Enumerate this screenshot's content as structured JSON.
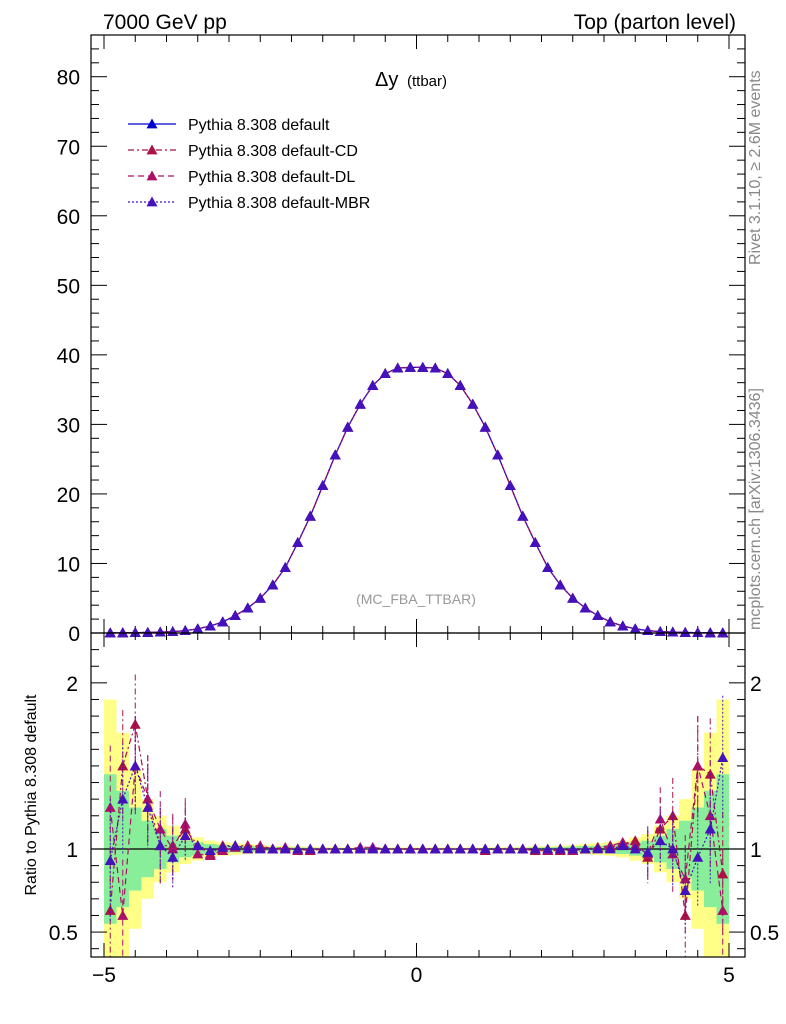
{
  "header": {
    "left": "7000 GeV pp",
    "right": "Top (parton level)"
  },
  "side_text": {
    "rivet": "Rivet 3.1.10, ≥ 2.6M events",
    "mcplots": "mcplots.cern.ch [arXiv:1306.3436]"
  },
  "plot_title": {
    "main": "Δy",
    "sub": "(ttbar)"
  },
  "watermark": "(MC_FBA_TTBAR)",
  "ratio_ylabel": "Ratio to Pythia 8.308 default",
  "colors": {
    "default": "#0000cc",
    "cd": "#aa1144",
    "dl": "#aa1166",
    "mbr": "#4411bb",
    "band_outer": "#ffff88",
    "band_inner": "#88ee99"
  },
  "chart_data": [
    {
      "type": "line",
      "panel": "main",
      "xlim": [
        -5,
        5
      ],
      "ylim": [
        0,
        86
      ],
      "yticks": [
        0,
        10,
        20,
        30,
        40,
        50,
        60,
        70,
        80
      ],
      "x": [
        -4.9,
        -4.7,
        -4.5,
        -4.3,
        -4.1,
        -3.9,
        -3.7,
        -3.5,
        -3.3,
        -3.1,
        -2.9,
        -2.7,
        -2.5,
        -2.3,
        -2.1,
        -1.9,
        -1.7,
        -1.5,
        -1.3,
        -1.1,
        -0.9,
        -0.7,
        -0.5,
        -0.3,
        -0.1,
        0.1,
        0.3,
        0.5,
        0.7,
        0.9,
        1.1,
        1.3,
        1.5,
        1.7,
        1.9,
        2.1,
        2.3,
        2.5,
        2.7,
        2.9,
        3.1,
        3.3,
        3.5,
        3.7,
        3.9,
        4.1,
        4.3,
        4.5,
        4.7,
        4.9
      ],
      "series": [
        {
          "name": "Pythia 8.308 default",
          "style": "solid",
          "marker": "triangle",
          "values": [
            0.02,
            0.03,
            0.05,
            0.08,
            0.13,
            0.2,
            0.35,
            0.6,
            1.0,
            1.6,
            2.5,
            3.6,
            5.0,
            6.9,
            9.4,
            13.0,
            16.8,
            21.2,
            25.6,
            29.6,
            32.9,
            35.6,
            37.3,
            38.1,
            38.2,
            38.2,
            38.1,
            37.3,
            35.6,
            32.9,
            29.6,
            25.6,
            21.2,
            16.8,
            13.0,
            9.4,
            6.9,
            5.0,
            3.6,
            2.5,
            1.6,
            1.0,
            0.6,
            0.35,
            0.2,
            0.13,
            0.08,
            0.05,
            0.03,
            0.02
          ]
        },
        {
          "name": "Pythia 8.308 default-CD",
          "style": "dashdot",
          "marker": "triangle",
          "values": [
            0.02,
            0.03,
            0.05,
            0.08,
            0.13,
            0.2,
            0.35,
            0.6,
            1.0,
            1.6,
            2.5,
            3.6,
            5.0,
            6.9,
            9.4,
            13.0,
            16.8,
            21.2,
            25.6,
            29.6,
            32.9,
            35.6,
            37.3,
            38.1,
            38.2,
            38.2,
            38.1,
            37.3,
            35.6,
            32.9,
            29.6,
            25.6,
            21.2,
            16.8,
            13.0,
            9.4,
            6.9,
            5.0,
            3.6,
            2.5,
            1.6,
            1.0,
            0.6,
            0.35,
            0.2,
            0.13,
            0.08,
            0.05,
            0.03,
            0.02
          ]
        },
        {
          "name": "Pythia 8.308 default-DL",
          "style": "dashed",
          "marker": "triangle",
          "values": [
            0.02,
            0.03,
            0.05,
            0.08,
            0.13,
            0.2,
            0.35,
            0.6,
            1.0,
            1.6,
            2.5,
            3.6,
            5.0,
            6.9,
            9.4,
            13.0,
            16.8,
            21.2,
            25.6,
            29.6,
            32.9,
            35.6,
            37.3,
            38.1,
            38.2,
            38.2,
            38.1,
            37.3,
            35.6,
            32.9,
            29.6,
            25.6,
            21.2,
            16.8,
            13.0,
            9.4,
            6.9,
            5.0,
            3.6,
            2.5,
            1.6,
            1.0,
            0.6,
            0.35,
            0.2,
            0.13,
            0.08,
            0.05,
            0.03,
            0.02
          ]
        },
        {
          "name": "Pythia 8.308 default-MBR",
          "style": "dotted",
          "marker": "triangle",
          "values": [
            0.02,
            0.03,
            0.05,
            0.08,
            0.13,
            0.2,
            0.35,
            0.6,
            1.0,
            1.6,
            2.5,
            3.6,
            5.0,
            6.9,
            9.4,
            13.0,
            16.8,
            21.2,
            25.6,
            29.6,
            32.9,
            35.6,
            37.3,
            38.1,
            38.2,
            38.2,
            38.1,
            37.3,
            35.6,
            32.9,
            29.6,
            25.6,
            21.2,
            16.8,
            13.0,
            9.4,
            6.9,
            5.0,
            3.6,
            2.5,
            1.6,
            1.0,
            0.6,
            0.35,
            0.2,
            0.13,
            0.08,
            0.05,
            0.03,
            0.02
          ]
        }
      ],
      "legend": "top-left"
    },
    {
      "type": "line",
      "panel": "ratio",
      "xlim": [
        -5,
        5
      ],
      "ylim": [
        0.35,
        2.3
      ],
      "yticks": [
        0.5,
        1,
        2
      ],
      "ytick_labels": [
        "0.5",
        "1",
        "2"
      ],
      "xticks": [
        -5,
        0,
        5
      ],
      "xtick_labels": [
        "−5",
        "0",
        "5"
      ],
      "ylabel": "Ratio to Pythia 8.308 default",
      "x": [
        -4.9,
        -4.7,
        -4.5,
        -4.3,
        -4.1,
        -3.9,
        -3.7,
        -3.5,
        -3.3,
        -3.1,
        -2.9,
        -2.7,
        -2.5,
        -2.3,
        -2.1,
        -1.9,
        -1.7,
        -1.5,
        -1.3,
        -1.1,
        -0.9,
        -0.7,
        -0.5,
        -0.3,
        -0.1,
        0.1,
        0.3,
        0.5,
        0.7,
        0.9,
        1.1,
        1.3,
        1.5,
        1.7,
        1.9,
        2.1,
        2.3,
        2.5,
        2.7,
        2.9,
        3.1,
        3.3,
        3.5,
        3.7,
        3.9,
        4.1,
        4.3,
        4.5,
        4.7,
        4.9
      ],
      "band_inner_halfwidth": [
        0.45,
        0.35,
        0.25,
        0.17,
        0.12,
        0.08,
        0.05,
        0.04,
        0.03,
        0.025,
        0.02,
        0.018,
        0.015,
        0.012,
        0.01,
        0.009,
        0.008,
        0.007,
        0.006,
        0.006,
        0.005,
        0.005,
        0.005,
        0.005,
        0.005,
        0.005,
        0.005,
        0.005,
        0.005,
        0.005,
        0.006,
        0.006,
        0.007,
        0.008,
        0.009,
        0.01,
        0.012,
        0.015,
        0.018,
        0.02,
        0.025,
        0.03,
        0.04,
        0.05,
        0.08,
        0.12,
        0.17,
        0.25,
        0.35,
        0.45
      ],
      "band_outer_halfwidth": [
        0.9,
        0.7,
        0.48,
        0.3,
        0.2,
        0.14,
        0.09,
        0.07,
        0.05,
        0.04,
        0.035,
        0.03,
        0.025,
        0.02,
        0.018,
        0.016,
        0.014,
        0.012,
        0.011,
        0.01,
        0.01,
        0.01,
        0.01,
        0.01,
        0.01,
        0.01,
        0.01,
        0.01,
        0.01,
        0.01,
        0.01,
        0.011,
        0.012,
        0.014,
        0.016,
        0.018,
        0.02,
        0.025,
        0.03,
        0.035,
        0.04,
        0.05,
        0.07,
        0.09,
        0.14,
        0.2,
        0.3,
        0.48,
        0.7,
        0.9
      ],
      "series": [
        {
          "name": "Pythia 8.308 default",
          "style": "solid",
          "values": [
            1,
            1,
            1,
            1,
            1,
            1,
            1,
            1,
            1,
            1,
            1,
            1,
            1,
            1,
            1,
            1,
            1,
            1,
            1,
            1,
            1,
            1,
            1,
            1,
            1,
            1,
            1,
            1,
            1,
            1,
            1,
            1,
            1,
            1,
            1,
            1,
            1,
            1,
            1,
            1,
            1,
            1,
            1,
            1,
            1,
            1,
            1,
            1,
            1,
            1
          ]
        },
        {
          "name": "Pythia 8.308 default-CD",
          "style": "dashdot",
          "values": [
            0.63,
            1.5,
            1.75,
            1.3,
            1.02,
            1.02,
            1.12,
            1.02,
            0.97,
            1.02,
            1.02,
            1.02,
            1.01,
            1.0,
            1.0,
            1.0,
            0.99,
            1.0,
            1.0,
            1.0,
            1.0,
            1.0,
            1.0,
            1.0,
            1.0,
            1.0,
            1.0,
            1.0,
            1.0,
            1.0,
            0.99,
            1.0,
            1.0,
            1.0,
            0.99,
            0.99,
            0.99,
            0.99,
            1.0,
            1.01,
            1.01,
            1.03,
            1.05,
            0.95,
            1.12,
            1.2,
            0.6,
            1.5,
            1.45,
            0.85
          ]
        },
        {
          "name": "Pythia 8.308 default-DL",
          "style": "dashed",
          "values": [
            1.25,
            0.6,
            1.5,
            1.3,
            1.12,
            1.0,
            1.15,
            0.97,
            0.96,
            0.99,
            1.01,
            1.02,
            1.02,
            1.0,
            1.01,
            0.99,
            1.0,
            1.0,
            1.0,
            1.0,
            1.01,
            1.01,
            1.0,
            1.0,
            1.0,
            1.0,
            1.0,
            1.0,
            1.0,
            1.0,
            1.0,
            1.0,
            1.0,
            1.0,
            1.0,
            0.99,
            1.0,
            0.99,
            1.0,
            1.01,
            1.02,
            1.04,
            1.02,
            0.97,
            1.18,
            0.97,
            0.82,
            1.5,
            1.2,
            0.63
          ]
        },
        {
          "name": "Pythia 8.308 default-MBR",
          "style": "dotted",
          "values": [
            0.93,
            1.3,
            1.5,
            1.25,
            1.02,
            0.95,
            1.08,
            1.02,
            0.99,
            1.01,
            1.02,
            1.0,
            1.0,
            1.0,
            1.0,
            1.0,
            1.0,
            1.0,
            1.0,
            1.0,
            1.0,
            1.0,
            1.0,
            1.0,
            1.0,
            1.0,
            1.0,
            1.0,
            1.0,
            1.0,
            1.0,
            1.0,
            1.0,
            1.0,
            1.0,
            1.0,
            1.0,
            1.0,
            1.0,
            1.0,
            1.0,
            1.02,
            1.0,
            0.98,
            1.05,
            1.0,
            0.75,
            0.95,
            1.12,
            1.55
          ]
        }
      ]
    }
  ]
}
